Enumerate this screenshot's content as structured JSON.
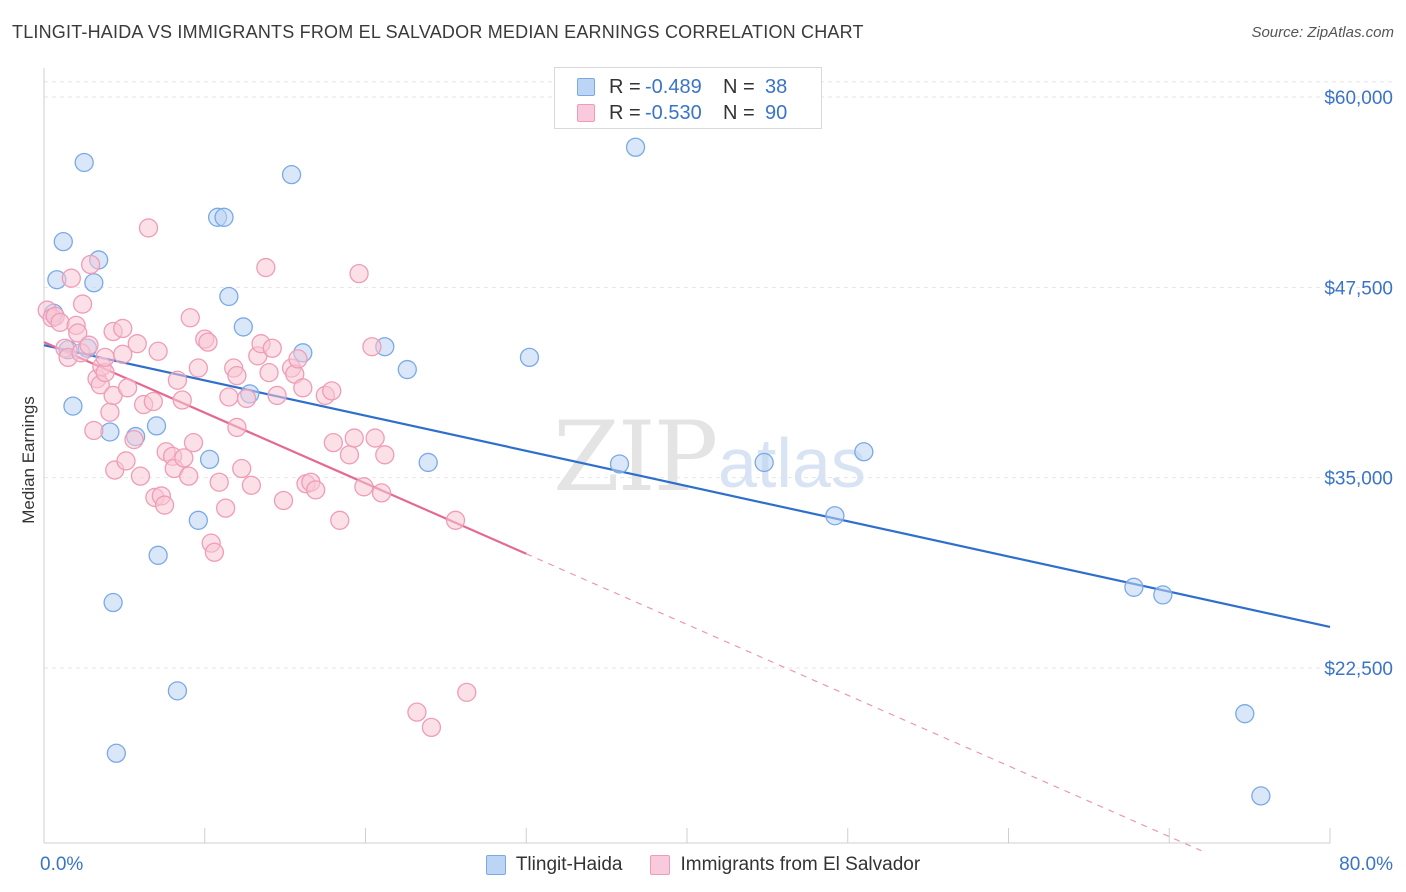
{
  "title": "TLINGIT-HAIDA VS IMMIGRANTS FROM EL SALVADOR MEDIAN EARNINGS CORRELATION CHART",
  "source": "Source: ZipAtlas.com",
  "watermark": {
    "zip": "ZIP",
    "atlas": "atlas"
  },
  "legend": [
    {
      "r_label": "R =",
      "r_value": "-0.489",
      "n_label": "N =",
      "n_value": "38",
      "color": "#a9c8ef",
      "stroke": "#6b9fe0"
    },
    {
      "r_label": "R =",
      "r_value": "-0.530",
      "n_label": "N =",
      "n_value": "90",
      "color": "#f6b8cc",
      "stroke": "#eb8aa9"
    }
  ],
  "bottom_legend": [
    {
      "label": "Tlingit-Haida",
      "color": "#a9c8ef",
      "stroke": "#6b9fe0"
    },
    {
      "label": "Immigrants from El Salvador",
      "color": "#f6b8cc",
      "stroke": "#eb8aa9"
    }
  ],
  "chart_data": {
    "type": "scatter",
    "ylabel": "Median Earnings",
    "xlim": [
      0,
      80
    ],
    "ylim": [
      10000,
      61000
    ],
    "x_tick_labels": [
      {
        "value": 0,
        "label": "0.0%"
      },
      {
        "value": 80,
        "label": "80.0%"
      }
    ],
    "y_ticks": [
      {
        "value": 60000,
        "label": "$60,000"
      },
      {
        "value": 47500,
        "label": "$47,500"
      },
      {
        "value": 35000,
        "label": "$35,000"
      },
      {
        "value": 22500,
        "label": "$22,500"
      }
    ],
    "grid": true,
    "series": [
      {
        "name": "Tlingit-Haida",
        "color": "#7aaae6",
        "fill": "#b9d3f3",
        "trend": {
          "x": [
            0,
            80
          ],
          "y": [
            43700,
            25200
          ],
          "style": "solid",
          "color": "#2f6fcc"
        },
        "points": [
          [
            0.6,
            45800
          ],
          [
            0.8,
            48000
          ],
          [
            1.2,
            50500
          ],
          [
            1.5,
            43400
          ],
          [
            2.5,
            55700
          ],
          [
            2.7,
            43500
          ],
          [
            3.1,
            47800
          ],
          [
            3.4,
            49300
          ],
          [
            1.8,
            39700
          ],
          [
            4.1,
            38000
          ],
          [
            4.3,
            26800
          ],
          [
            4.5,
            16900
          ],
          [
            5.7,
            37700
          ],
          [
            7.0,
            38400
          ],
          [
            7.1,
            29900
          ],
          [
            8.3,
            21000
          ],
          [
            9.6,
            32200
          ],
          [
            10.3,
            36200
          ],
          [
            10.8,
            52100
          ],
          [
            11.2,
            52100
          ],
          [
            11.5,
            46900
          ],
          [
            12.4,
            44900
          ],
          [
            12.8,
            40500
          ],
          [
            15.4,
            54900
          ],
          [
            16.1,
            43200
          ],
          [
            21.2,
            43600
          ],
          [
            22.6,
            42100
          ],
          [
            23.9,
            36000
          ],
          [
            30.2,
            42900
          ],
          [
            35.8,
            35900
          ],
          [
            36.8,
            56700
          ],
          [
            44.8,
            36000
          ],
          [
            49.2,
            32500
          ],
          [
            51.0,
            36700
          ],
          [
            67.8,
            27800
          ],
          [
            69.6,
            27300
          ],
          [
            74.7,
            19500
          ],
          [
            75.7,
            14100
          ]
        ]
      },
      {
        "name": "Immigrants from El Salvador",
        "color": "#f09cb7",
        "fill": "#f8c6d6",
        "trend": {
          "x": [
            0,
            30
          ],
          "y": [
            43900,
            30000
          ],
          "style": "solid",
          "color": "#e46a93",
          "extension": {
            "x": [
              30,
              72
            ],
            "y": [
              30000,
              10500
            ],
            "style": "dashed"
          }
        },
        "points": [
          [
            0.2,
            46000
          ],
          [
            0.5,
            45500
          ],
          [
            0.7,
            45600
          ],
          [
            1.0,
            45200
          ],
          [
            1.3,
            43500
          ],
          [
            1.5,
            42900
          ],
          [
            1.7,
            48100
          ],
          [
            2.0,
            45000
          ],
          [
            2.1,
            44500
          ],
          [
            2.3,
            43200
          ],
          [
            2.4,
            46400
          ],
          [
            2.8,
            43700
          ],
          [
            2.9,
            49000
          ],
          [
            3.1,
            38100
          ],
          [
            3.3,
            41500
          ],
          [
            3.5,
            41100
          ],
          [
            3.6,
            42300
          ],
          [
            3.8,
            41900
          ],
          [
            3.8,
            42900
          ],
          [
            4.1,
            39300
          ],
          [
            4.3,
            40400
          ],
          [
            4.3,
            44600
          ],
          [
            4.4,
            35500
          ],
          [
            4.9,
            44800
          ],
          [
            5.1,
            36100
          ],
          [
            5.2,
            40900
          ],
          [
            5.6,
            37500
          ],
          [
            5.8,
            43800
          ],
          [
            6.0,
            35100
          ],
          [
            6.2,
            39800
          ],
          [
            6.5,
            51400
          ],
          [
            6.8,
            40000
          ],
          [
            6.9,
            33700
          ],
          [
            7.1,
            43300
          ],
          [
            7.3,
            33800
          ],
          [
            7.5,
            33200
          ],
          [
            7.6,
            36700
          ],
          [
            8.0,
            36400
          ],
          [
            8.1,
            35600
          ],
          [
            8.3,
            41400
          ],
          [
            8.6,
            40100
          ],
          [
            8.7,
            36300
          ],
          [
            9.0,
            35100
          ],
          [
            9.1,
            45500
          ],
          [
            9.3,
            37300
          ],
          [
            9.6,
            42200
          ],
          [
            10.0,
            44100
          ],
          [
            10.2,
            43900
          ],
          [
            10.4,
            30700
          ],
          [
            10.6,
            30100
          ],
          [
            10.9,
            34700
          ],
          [
            11.3,
            33000
          ],
          [
            11.5,
            40300
          ],
          [
            11.8,
            42200
          ],
          [
            12.0,
            41700
          ],
          [
            12.0,
            38300
          ],
          [
            12.3,
            35600
          ],
          [
            12.6,
            40200
          ],
          [
            12.9,
            34500
          ],
          [
            13.3,
            43000
          ],
          [
            13.5,
            43800
          ],
          [
            13.8,
            48800
          ],
          [
            14.0,
            41900
          ],
          [
            14.2,
            43500
          ],
          [
            14.5,
            40400
          ],
          [
            14.9,
            33500
          ],
          [
            15.4,
            42200
          ],
          [
            15.6,
            41800
          ],
          [
            15.8,
            42800
          ],
          [
            16.1,
            40900
          ],
          [
            16.3,
            34600
          ],
          [
            16.6,
            34700
          ],
          [
            16.9,
            34200
          ],
          [
            17.5,
            40400
          ],
          [
            17.9,
            40700
          ],
          [
            18.0,
            37300
          ],
          [
            18.4,
            32200
          ],
          [
            19.0,
            36500
          ],
          [
            19.3,
            37600
          ],
          [
            19.6,
            48400
          ],
          [
            19.9,
            34400
          ],
          [
            20.4,
            43600
          ],
          [
            20.6,
            37600
          ],
          [
            21.0,
            34000
          ],
          [
            21.2,
            36500
          ],
          [
            23.2,
            19600
          ],
          [
            24.1,
            18600
          ],
          [
            25.6,
            32200
          ],
          [
            26.3,
            20900
          ],
          [
            4.9,
            43100
          ]
        ]
      }
    ]
  }
}
